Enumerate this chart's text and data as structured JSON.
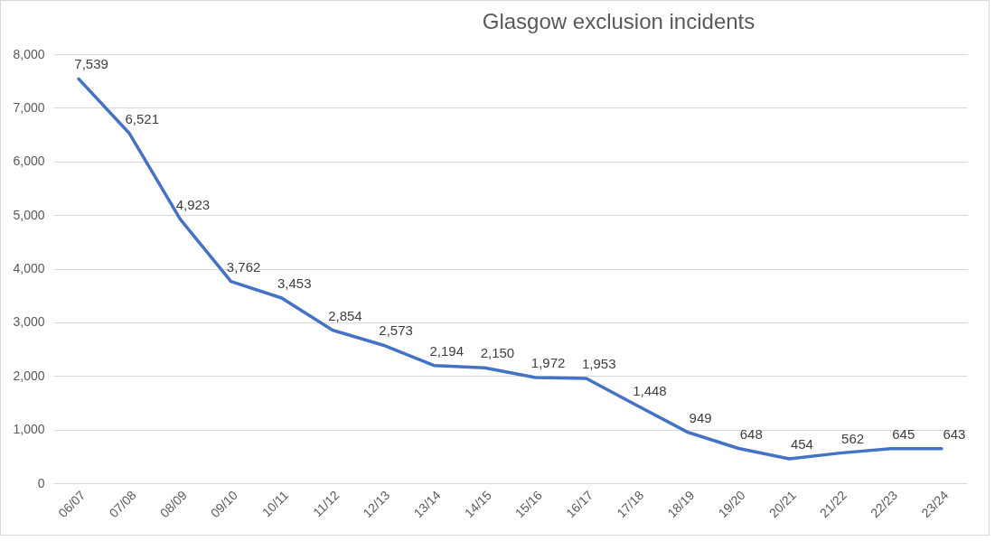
{
  "chart_data": {
    "type": "line",
    "title": "Glasgow exclusion incidents",
    "categories": [
      "06/07",
      "07/08",
      "08/09",
      "09/10",
      "10/11",
      "11/12",
      "12/13",
      "13/14",
      "14/15",
      "15/16",
      "16/17",
      "17/18",
      "18/19",
      "19/20",
      "20/21",
      "21/22",
      "22/23",
      "23/24"
    ],
    "series": [
      {
        "color": "#4472c4",
        "values": [
          7539,
          6521,
          4923,
          3762,
          3453,
          2854,
          2573,
          2194,
          2150,
          1972,
          1953,
          1448,
          949,
          648,
          454,
          562,
          645,
          643
        ],
        "value_labels": [
          "7,539",
          "6,521",
          "4,923",
          "3,762",
          "3,453",
          "2,854",
          "2,573",
          "2,194",
          "2,150",
          "1,972",
          "1,953",
          "1,448",
          "949",
          "648",
          "454",
          "562",
          "645",
          "643"
        ]
      }
    ],
    "ylim": [
      0,
      8000
    ],
    "yticks": [
      {
        "value": 0,
        "label": "0"
      },
      {
        "value": 1000,
        "label": "1,000"
      },
      {
        "value": 2000,
        "label": "2,000"
      },
      {
        "value": 3000,
        "label": "3,000"
      },
      {
        "value": 4000,
        "label": "4,000"
      },
      {
        "value": 5000,
        "label": "5,000"
      },
      {
        "value": 6000,
        "label": "6,000"
      },
      {
        "value": 7000,
        "label": "7,000"
      },
      {
        "value": 8000,
        "label": "8,000"
      }
    ],
    "grid": "y",
    "legend": false,
    "marker": "none",
    "line_style": "solid"
  }
}
